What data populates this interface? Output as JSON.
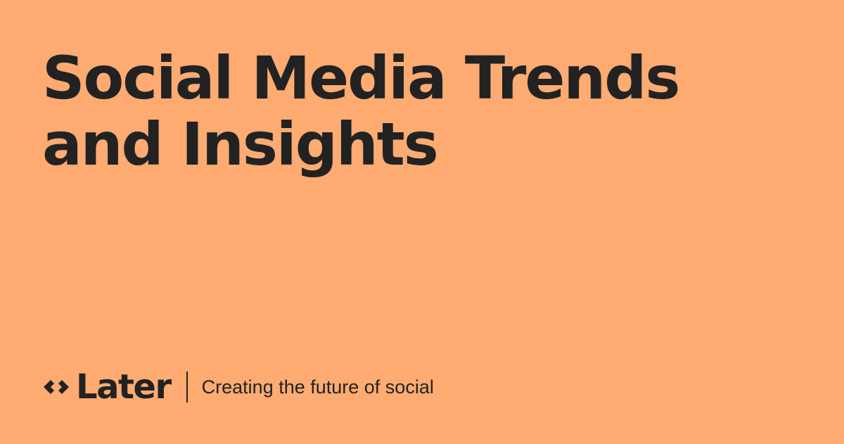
{
  "headline": {
    "line1": "Social Media Trends",
    "line2": "and Insights"
  },
  "brand": {
    "name": "Later",
    "icon": "later-diamond-logo-icon",
    "tagline": "Creating the future of social"
  },
  "colors": {
    "background": "#FFAB72",
    "text": "#222222"
  }
}
